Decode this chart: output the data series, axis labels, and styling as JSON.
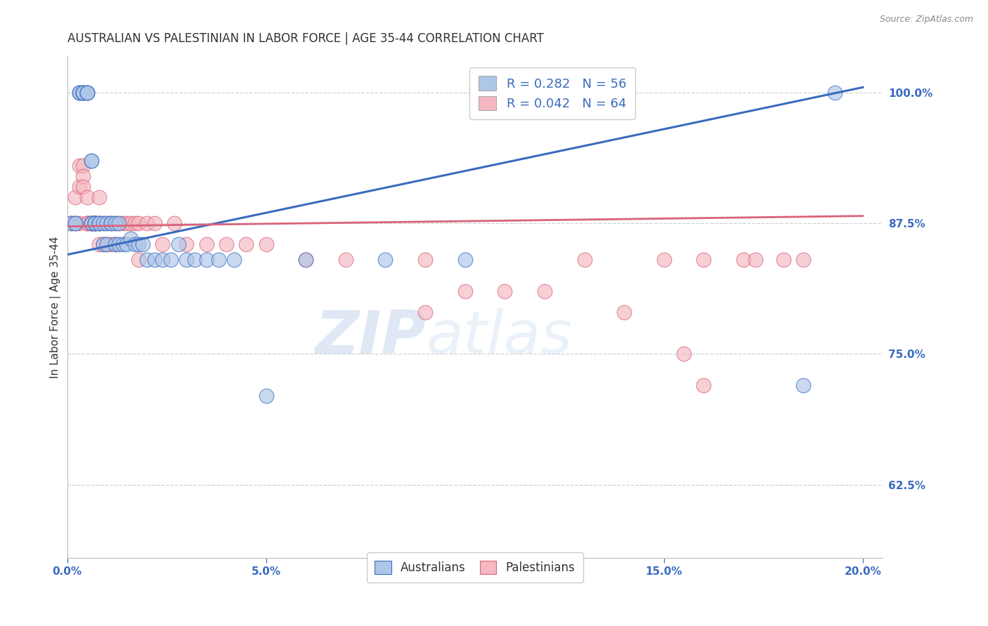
{
  "title": "AUSTRALIAN VS PALESTINIAN IN LABOR FORCE | AGE 35-44 CORRELATION CHART",
  "source_text": "Source: ZipAtlas.com",
  "ylabel": "In Labor Force | Age 35-44",
  "xlim": [
    0.0,
    0.205
  ],
  "ylim": [
    0.555,
    1.035
  ],
  "xtick_labels": [
    "0.0%",
    "",
    "5.0%",
    "",
    "10.0%",
    "",
    "15.0%",
    "",
    "20.0%"
  ],
  "xtick_values": [
    0.0,
    0.025,
    0.05,
    0.075,
    0.1,
    0.125,
    0.15,
    0.175,
    0.2
  ],
  "xtick_display": [
    "0.0%",
    "5.0%",
    "10.0%",
    "15.0%",
    "20.0%"
  ],
  "xtick_display_vals": [
    0.0,
    0.05,
    0.1,
    0.15,
    0.2
  ],
  "ytick_labels": [
    "62.5%",
    "75.0%",
    "87.5%",
    "100.0%"
  ],
  "ytick_values": [
    0.625,
    0.75,
    0.875,
    1.0
  ],
  "australians_color": "#aec6e8",
  "palestinians_color": "#f4b8c1",
  "blue_line_color": "#3a6bbf",
  "pink_line_color": "#d9627a",
  "watermark_zip": "ZIP",
  "watermark_atlas": "atlas",
  "background_color": "#ffffff",
  "grid_color": "#cccccc",
  "title_fontsize": 12,
  "axis_label_fontsize": 11,
  "tick_fontsize": 11,
  "blue_line_x": [
    0.0,
    0.2
  ],
  "blue_line_y": [
    0.845,
    1.005
  ],
  "pink_line_x": [
    0.0,
    0.2
  ],
  "pink_line_y": [
    0.872,
    0.882
  ],
  "aus_x": [
    0.001,
    0.002,
    0.002,
    0.003,
    0.003,
    0.003,
    0.004,
    0.004,
    0.004,
    0.004,
    0.005,
    0.005,
    0.005,
    0.005,
    0.006,
    0.006,
    0.006,
    0.006,
    0.007,
    0.007,
    0.007,
    0.008,
    0.008,
    0.008,
    0.009,
    0.009,
    0.01,
    0.01,
    0.011,
    0.011,
    0.012,
    0.012,
    0.013,
    0.013,
    0.014,
    0.015,
    0.016,
    0.017,
    0.018,
    0.019,
    0.02,
    0.022,
    0.024,
    0.026,
    0.028,
    0.03,
    0.032,
    0.035,
    0.038,
    0.042,
    0.05,
    0.06,
    0.08,
    0.1,
    0.185,
    0.193
  ],
  "aus_y": [
    0.875,
    0.875,
    0.875,
    1.0,
    1.0,
    1.0,
    1.0,
    1.0,
    1.0,
    1.0,
    1.0,
    1.0,
    1.0,
    1.0,
    0.935,
    0.935,
    0.875,
    0.875,
    0.875,
    0.875,
    0.875,
    0.875,
    0.875,
    0.875,
    0.875,
    0.855,
    0.875,
    0.855,
    0.875,
    0.875,
    0.875,
    0.855,
    0.875,
    0.855,
    0.855,
    0.855,
    0.86,
    0.855,
    0.855,
    0.855,
    0.84,
    0.84,
    0.84,
    0.84,
    0.855,
    0.84,
    0.84,
    0.84,
    0.84,
    0.84,
    0.71,
    0.84,
    0.84,
    0.84,
    0.72,
    1.0
  ],
  "pal_x": [
    0.001,
    0.001,
    0.002,
    0.002,
    0.003,
    0.003,
    0.003,
    0.004,
    0.004,
    0.004,
    0.005,
    0.005,
    0.005,
    0.005,
    0.006,
    0.006,
    0.006,
    0.007,
    0.007,
    0.007,
    0.008,
    0.008,
    0.008,
    0.009,
    0.009,
    0.01,
    0.01,
    0.011,
    0.011,
    0.012,
    0.012,
    0.013,
    0.014,
    0.015,
    0.016,
    0.017,
    0.018,
    0.02,
    0.022,
    0.024,
    0.027,
    0.03,
    0.035,
    0.04,
    0.045,
    0.05,
    0.06,
    0.07,
    0.09,
    0.1,
    0.11,
    0.12,
    0.13,
    0.14,
    0.15,
    0.16,
    0.17,
    0.173,
    0.18,
    0.185,
    0.155,
    0.16,
    0.09,
    0.018
  ],
  "pal_y": [
    0.875,
    0.875,
    0.9,
    0.875,
    0.93,
    0.91,
    0.875,
    0.93,
    0.92,
    0.91,
    0.9,
    0.875,
    0.875,
    0.875,
    0.875,
    0.875,
    0.875,
    0.875,
    0.875,
    0.875,
    0.9,
    0.875,
    0.855,
    0.875,
    0.855,
    0.875,
    0.855,
    0.875,
    0.855,
    0.875,
    0.855,
    0.875,
    0.875,
    0.875,
    0.875,
    0.875,
    0.875,
    0.875,
    0.875,
    0.855,
    0.875,
    0.855,
    0.855,
    0.855,
    0.855,
    0.855,
    0.84,
    0.84,
    0.84,
    0.81,
    0.81,
    0.81,
    0.84,
    0.79,
    0.84,
    0.84,
    0.84,
    0.84,
    0.84,
    0.84,
    0.75,
    0.72,
    0.79,
    0.84
  ]
}
